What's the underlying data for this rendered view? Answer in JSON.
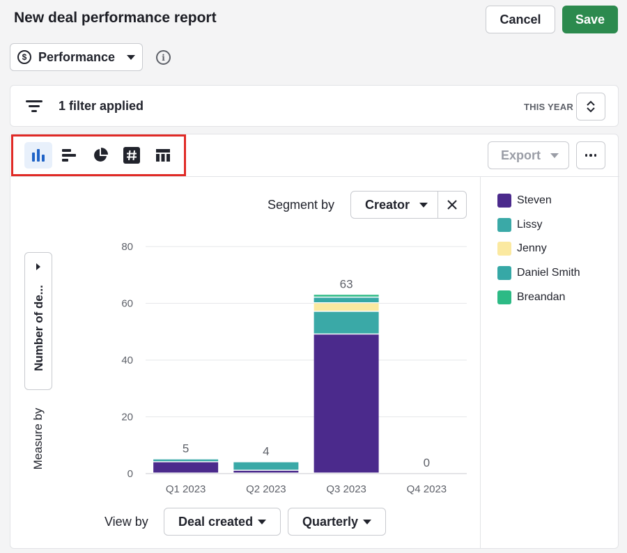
{
  "page": {
    "title": "New deal performance report",
    "cancel_label": "Cancel",
    "save_label": "Save"
  },
  "report_type": {
    "label": "Performance",
    "icon": "dollar-circle-icon",
    "info_icon": "info-icon"
  },
  "filter": {
    "text": "1 filter applied",
    "period_label": "THIS YEAR"
  },
  "toolbar": {
    "chart_types": [
      {
        "name": "column-chart",
        "icon": "column-chart-icon",
        "active": true
      },
      {
        "name": "bar-chart",
        "icon": "bar-chart-icon",
        "active": false
      },
      {
        "name": "pie-chart",
        "icon": "pie-chart-icon",
        "active": false
      },
      {
        "name": "scorecard",
        "icon": "hash-icon",
        "active": false
      },
      {
        "name": "table",
        "icon": "table-icon",
        "active": false
      }
    ],
    "export_label": "Export"
  },
  "segment": {
    "label": "Segment by",
    "value": "Creator"
  },
  "measure": {
    "button_text": "Number of de...",
    "label": "Measure by"
  },
  "view": {
    "label": "View by",
    "field_value": "Deal created",
    "interval_value": "Quarterly"
  },
  "colors": {
    "steven": "#4b2a8c",
    "lissy": "#3aa9a7",
    "jenny": "#fbe9a0",
    "daniel_smith": "#36a8a6",
    "breandan": "#2dba85",
    "save": "#2c8a4e",
    "highlight": "#e02a26",
    "active_icon": "#1f63c7"
  },
  "chart_data": {
    "type": "bar",
    "stacked": true,
    "categories": [
      "Q1 2023",
      "Q2 2023",
      "Q3 2023",
      "Q4 2023"
    ],
    "totals": [
      5,
      4,
      63,
      0
    ],
    "series": [
      {
        "name": "Steven",
        "color": "#4b2a8c",
        "values": [
          4,
          1,
          49,
          0
        ]
      },
      {
        "name": "Lissy",
        "color": "#3aa9a7",
        "values": [
          1,
          3,
          8,
          0
        ]
      },
      {
        "name": "Jenny",
        "color": "#fbe9a0",
        "values": [
          0,
          0,
          3,
          0
        ]
      },
      {
        "name": "Daniel Smith",
        "color": "#36a8a6",
        "values": [
          0,
          0,
          2,
          0
        ]
      },
      {
        "name": "Breandan",
        "color": "#2dba85",
        "values": [
          0,
          0,
          1,
          0
        ]
      }
    ],
    "ylim": [
      0,
      80
    ],
    "yticks": [
      0,
      20,
      40,
      60,
      80
    ],
    "grid": true,
    "legend_position": "right"
  }
}
